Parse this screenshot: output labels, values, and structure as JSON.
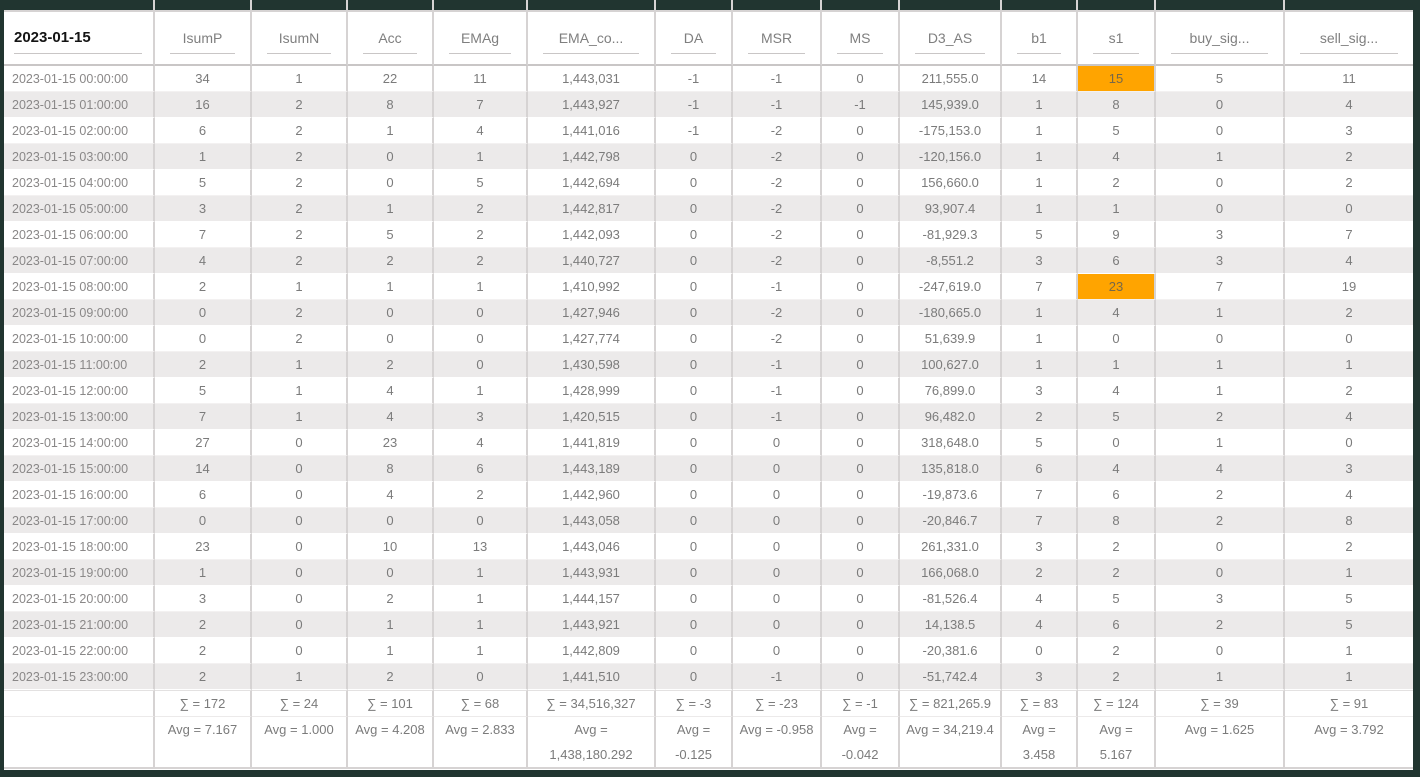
{
  "table": {
    "date_header": "2023-01-15",
    "columns": [
      "IsumP",
      "IsumN",
      "Acc",
      "EMAg",
      "EMA_co...",
      "DA",
      "MSR",
      "MS",
      "D3_AS",
      "b1",
      "s1",
      "buy_sig...",
      "sell_sig..."
    ],
    "rows": [
      {
        "time": "2023-01-15 00:00:00",
        "values": [
          "34",
          "1",
          "22",
          "11",
          "1,443,031",
          "-1",
          "-1",
          "0",
          "211,555.0",
          "14",
          "15",
          "5",
          "11"
        ]
      },
      {
        "time": "2023-01-15 01:00:00",
        "values": [
          "16",
          "2",
          "8",
          "7",
          "1,443,927",
          "-1",
          "-1",
          "-1",
          "145,939.0",
          "1",
          "8",
          "0",
          "4"
        ]
      },
      {
        "time": "2023-01-15 02:00:00",
        "values": [
          "6",
          "2",
          "1",
          "4",
          "1,441,016",
          "-1",
          "-2",
          "0",
          "-175,153.0",
          "1",
          "5",
          "0",
          "3"
        ]
      },
      {
        "time": "2023-01-15 03:00:00",
        "values": [
          "1",
          "2",
          "0",
          "1",
          "1,442,798",
          "0",
          "-2",
          "0",
          "-120,156.0",
          "1",
          "4",
          "1",
          "2"
        ]
      },
      {
        "time": "2023-01-15 04:00:00",
        "values": [
          "5",
          "2",
          "0",
          "5",
          "1,442,694",
          "0",
          "-2",
          "0",
          "156,660.0",
          "1",
          "2",
          "0",
          "2"
        ]
      },
      {
        "time": "2023-01-15 05:00:00",
        "values": [
          "3",
          "2",
          "1",
          "2",
          "1,442,817",
          "0",
          "-2",
          "0",
          "93,907.4",
          "1",
          "1",
          "0",
          "0"
        ]
      },
      {
        "time": "2023-01-15 06:00:00",
        "values": [
          "7",
          "2",
          "5",
          "2",
          "1,442,093",
          "0",
          "-2",
          "0",
          "-81,929.3",
          "5",
          "9",
          "3",
          "7"
        ]
      },
      {
        "time": "2023-01-15 07:00:00",
        "values": [
          "4",
          "2",
          "2",
          "2",
          "1,440,727",
          "0",
          "-2",
          "0",
          "-8,551.2",
          "3",
          "6",
          "3",
          "4"
        ]
      },
      {
        "time": "2023-01-15 08:00:00",
        "values": [
          "2",
          "1",
          "1",
          "1",
          "1,410,992",
          "0",
          "-1",
          "0",
          "-247,619.0",
          "7",
          "23",
          "7",
          "19"
        ]
      },
      {
        "time": "2023-01-15 09:00:00",
        "values": [
          "0",
          "2",
          "0",
          "0",
          "1,427,946",
          "0",
          "-2",
          "0",
          "-180,665.0",
          "1",
          "4",
          "1",
          "2"
        ]
      },
      {
        "time": "2023-01-15 10:00:00",
        "values": [
          "0",
          "2",
          "0",
          "0",
          "1,427,774",
          "0",
          "-2",
          "0",
          "51,639.9",
          "1",
          "0",
          "0",
          "0"
        ]
      },
      {
        "time": "2023-01-15 11:00:00",
        "values": [
          "2",
          "1",
          "2",
          "0",
          "1,430,598",
          "0",
          "-1",
          "0",
          "100,627.0",
          "1",
          "1",
          "1",
          "1"
        ]
      },
      {
        "time": "2023-01-15 12:00:00",
        "values": [
          "5",
          "1",
          "4",
          "1",
          "1,428,999",
          "0",
          "-1",
          "0",
          "76,899.0",
          "3",
          "4",
          "1",
          "2"
        ]
      },
      {
        "time": "2023-01-15 13:00:00",
        "values": [
          "7",
          "1",
          "4",
          "3",
          "1,420,515",
          "0",
          "-1",
          "0",
          "96,482.0",
          "2",
          "5",
          "2",
          "4"
        ]
      },
      {
        "time": "2023-01-15 14:00:00",
        "values": [
          "27",
          "0",
          "23",
          "4",
          "1,441,819",
          "0",
          "0",
          "0",
          "318,648.0",
          "5",
          "0",
          "1",
          "0"
        ]
      },
      {
        "time": "2023-01-15 15:00:00",
        "values": [
          "14",
          "0",
          "8",
          "6",
          "1,443,189",
          "0",
          "0",
          "0",
          "135,818.0",
          "6",
          "4",
          "4",
          "3"
        ]
      },
      {
        "time": "2023-01-15 16:00:00",
        "values": [
          "6",
          "0",
          "4",
          "2",
          "1,442,960",
          "0",
          "0",
          "0",
          "-19,873.6",
          "7",
          "6",
          "2",
          "4"
        ]
      },
      {
        "time": "2023-01-15 17:00:00",
        "values": [
          "0",
          "0",
          "0",
          "0",
          "1,443,058",
          "0",
          "0",
          "0",
          "-20,846.7",
          "7",
          "8",
          "2",
          "8"
        ]
      },
      {
        "time": "2023-01-15 18:00:00",
        "values": [
          "23",
          "0",
          "10",
          "13",
          "1,443,046",
          "0",
          "0",
          "0",
          "261,331.0",
          "3",
          "2",
          "0",
          "2"
        ]
      },
      {
        "time": "2023-01-15 19:00:00",
        "values": [
          "1",
          "0",
          "0",
          "1",
          "1,443,931",
          "0",
          "0",
          "0",
          "166,068.0",
          "2",
          "2",
          "0",
          "1"
        ]
      },
      {
        "time": "2023-01-15 20:00:00",
        "values": [
          "3",
          "0",
          "2",
          "1",
          "1,444,157",
          "0",
          "0",
          "0",
          "-81,526.4",
          "4",
          "5",
          "3",
          "5"
        ]
      },
      {
        "time": "2023-01-15 21:00:00",
        "values": [
          "2",
          "0",
          "1",
          "1",
          "1,443,921",
          "0",
          "0",
          "0",
          "14,138.5",
          "4",
          "6",
          "2",
          "5"
        ]
      },
      {
        "time": "2023-01-15 22:00:00",
        "values": [
          "2",
          "0",
          "1",
          "1",
          "1,442,809",
          "0",
          "0",
          "0",
          "-20,381.6",
          "0",
          "2",
          "0",
          "1"
        ]
      },
      {
        "time": "2023-01-15 23:00:00",
        "values": [
          "2",
          "1",
          "2",
          "0",
          "1,441,510",
          "0",
          "-1",
          "0",
          "-51,742.4",
          "3",
          "2",
          "1",
          "1"
        ]
      }
    ],
    "highlights": [
      {
        "row": 0,
        "col": 10
      },
      {
        "row": 8,
        "col": 10
      }
    ],
    "sum_row": [
      "∑ = 172",
      "∑ = 24",
      "∑ = 101",
      "∑ = 68",
      "∑ = 34,516,327",
      "∑ = -3",
      "∑ = -23",
      "∑ = -1",
      "∑ = 821,265.9",
      "∑ = 83",
      "∑ = 124",
      "∑ = 39",
      "∑ = 91"
    ],
    "avg_row": [
      "Avg = 7.167",
      "Avg = 1.000",
      "Avg = 4.208",
      "Avg = 2.833",
      "Avg = 1,438,180.292",
      "Avg = -0.125",
      "Avg = -0.958",
      "Avg = -0.042",
      "Avg = 34,219.4",
      "Avg = 3.458",
      "Avg = 5.167",
      "Avg = 1.625",
      "Avg = 3.792"
    ],
    "colors": {
      "frame_dark": "#213530",
      "highlight_orange": "#ffa400",
      "stripe": "#eceaea"
    }
  }
}
